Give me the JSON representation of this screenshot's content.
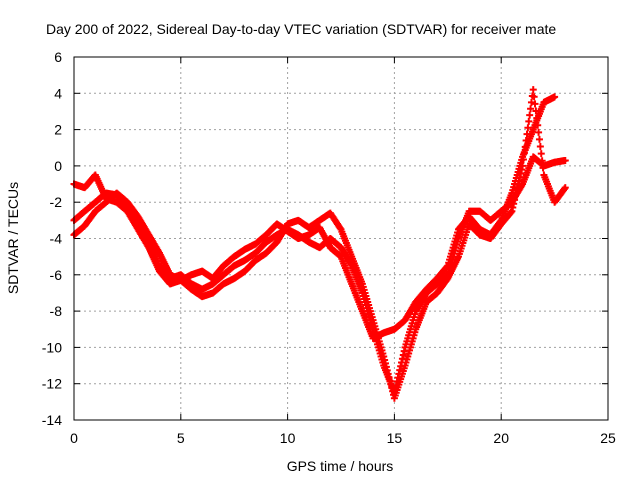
{
  "chart_data": {
    "type": "scatter",
    "title": "Day 200 of 2022, Sidereal Day-to-day VTEC variation (SDTVAR) for receiver mate",
    "xlabel": "GPS time / hours",
    "ylabel": "SDTVAR / TECUs",
    "xlim": [
      0,
      25
    ],
    "ylim": [
      -14,
      6
    ],
    "x_ticks": [
      0,
      5,
      10,
      15,
      20,
      25
    ],
    "y_ticks": [
      -14,
      -12,
      -10,
      -8,
      -6,
      -4,
      -2,
      0,
      2,
      4,
      6
    ],
    "grid": true,
    "marker": "+",
    "color": "#ff0000",
    "series": [
      {
        "x": [
          0.0,
          0.5,
          1.0,
          1.5,
          2.0,
          2.5,
          3.0,
          3.5,
          4.0,
          4.5,
          5.0,
          5.5,
          6.0,
          6.5,
          7.0,
          7.5,
          8.0,
          8.5,
          9.0,
          9.5,
          10.0,
          10.5,
          11.0,
          11.5,
          12.0,
          12.5,
          13.0,
          13.5,
          14.0,
          14.5,
          15.0,
          15.5,
          16.0,
          16.5,
          17.0,
          17.5,
          18.0,
          18.5,
          19.0,
          19.5,
          20.0,
          20.5,
          21.0,
          21.5,
          22.0,
          22.5,
          23.0
        ],
        "y": [
          -3.0,
          -2.5,
          -2.0,
          -1.5,
          -1.6,
          -2.2,
          -3.0,
          -4.0,
          -5.5,
          -6.2,
          -6.0,
          -6.5,
          -6.8,
          -6.5,
          -6.0,
          -5.5,
          -5.2,
          -4.8,
          -4.2,
          -3.8,
          -3.5,
          -3.8,
          -4.2,
          -4.5,
          -4.0,
          -4.5,
          -5.5,
          -7.0,
          -9.0,
          -11.0,
          -12.5,
          -10.0,
          -8.0,
          -7.0,
          -6.5,
          -6.0,
          -4.0,
          -2.5,
          -2.5,
          -3.0,
          -2.5,
          -2.0,
          -1.0,
          0.5,
          0.0,
          0.2,
          0.3
        ]
      },
      {
        "x": [
          0.0,
          0.5,
          1.0,
          1.5,
          2.0,
          2.5,
          3.0,
          3.5,
          4.0,
          4.5,
          5.0,
          5.5,
          6.0,
          6.5,
          7.0,
          7.5,
          8.0,
          8.5,
          9.0,
          9.5,
          10.0,
          10.5,
          11.0,
          11.5,
          12.0,
          12.5,
          13.0,
          13.5,
          14.0,
          14.5,
          15.0,
          15.5,
          16.0,
          16.5,
          17.0,
          17.5,
          18.0,
          18.5,
          19.0,
          19.5,
          20.0,
          20.5,
          21.0,
          21.5,
          22.0,
          22.5
        ],
        "y": [
          -1.0,
          -1.2,
          -0.5,
          -1.8,
          -2.0,
          -2.5,
          -3.5,
          -4.5,
          -5.8,
          -6.5,
          -6.3,
          -6.0,
          -5.8,
          -6.2,
          -5.5,
          -5.0,
          -4.6,
          -4.3,
          -3.8,
          -3.2,
          -3.6,
          -4.0,
          -3.8,
          -3.4,
          -4.5,
          -5.0,
          -6.5,
          -8.0,
          -9.5,
          -9.2,
          -9.0,
          -8.5,
          -7.5,
          -6.8,
          -6.2,
          -5.5,
          -3.5,
          -2.8,
          -3.5,
          -3.8,
          -3.0,
          -1.5,
          0.5,
          2.0,
          3.5,
          3.8
        ]
      },
      {
        "x": [
          0.0,
          0.5,
          1.0,
          1.5,
          2.0,
          2.5,
          3.0,
          3.5,
          4.0,
          4.5,
          5.0,
          5.5,
          6.0,
          6.5,
          7.0,
          7.5,
          8.0,
          8.5,
          9.0,
          9.5,
          10.0,
          10.5,
          11.0,
          11.5,
          12.0,
          12.5,
          13.0,
          13.5,
          14.0,
          14.5,
          15.0,
          15.5,
          16.0,
          16.5,
          17.0,
          17.5,
          18.0,
          18.5,
          19.0,
          19.5,
          20.0,
          20.5,
          21.0,
          21.5,
          22.0,
          22.5,
          23.0
        ],
        "y": [
          -3.8,
          -3.3,
          -2.5,
          -2.0,
          -1.5,
          -2.0,
          -2.8,
          -3.8,
          -4.8,
          -6.0,
          -6.3,
          -6.8,
          -7.2,
          -7.0,
          -6.5,
          -6.2,
          -5.8,
          -5.2,
          -4.8,
          -4.2,
          -3.2,
          -3.0,
          -3.4,
          -3.0,
          -2.6,
          -3.5,
          -5.0,
          -6.5,
          -8.5,
          -10.5,
          -12.8,
          -11.0,
          -9.0,
          -7.5,
          -7.0,
          -6.2,
          -5.0,
          -3.2,
          -3.8,
          -4.0,
          -3.2,
          -2.5,
          0.0,
          4.2,
          -0.5,
          -2.0,
          -1.2
        ]
      }
    ]
  }
}
